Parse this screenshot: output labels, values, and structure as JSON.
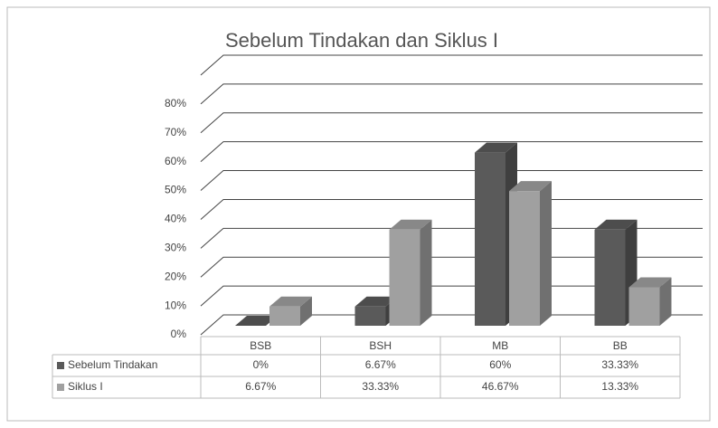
{
  "chart_data": {
    "type": "bar3d",
    "title": "Sebelum Tindakan dan Siklus I",
    "categories": [
      "BSB",
      "BSH",
      "MB",
      "BB"
    ],
    "series": [
      {
        "name": "Sebelum Tindakan",
        "color": "#5a5a5a",
        "values": [
          0,
          6.67,
          60,
          33.33
        ],
        "value_labels": [
          "0%",
          "6.67%",
          "60%",
          "33.33%"
        ]
      },
      {
        "name": "Siklus I",
        "color": "#a0a0a0",
        "values": [
          6.67,
          33.33,
          46.67,
          13.33
        ],
        "value_labels": [
          "6.67%",
          "33.33%",
          "46.67%",
          "13.33%"
        ]
      }
    ],
    "ylim": [
      0,
      90
    ],
    "yticks": [
      {
        "value": 0,
        "label": "0%"
      },
      {
        "value": 10,
        "label": "10%"
      },
      {
        "value": 20,
        "label": "20%"
      },
      {
        "value": 30,
        "label": "30%"
      },
      {
        "value": 40,
        "label": "40%"
      },
      {
        "value": 50,
        "label": "50%"
      },
      {
        "value": 60,
        "label": "60%"
      },
      {
        "value": 70,
        "label": "70%"
      },
      {
        "value": 80,
        "label": "80%"
      }
    ],
    "grid": true,
    "legend": "table"
  }
}
